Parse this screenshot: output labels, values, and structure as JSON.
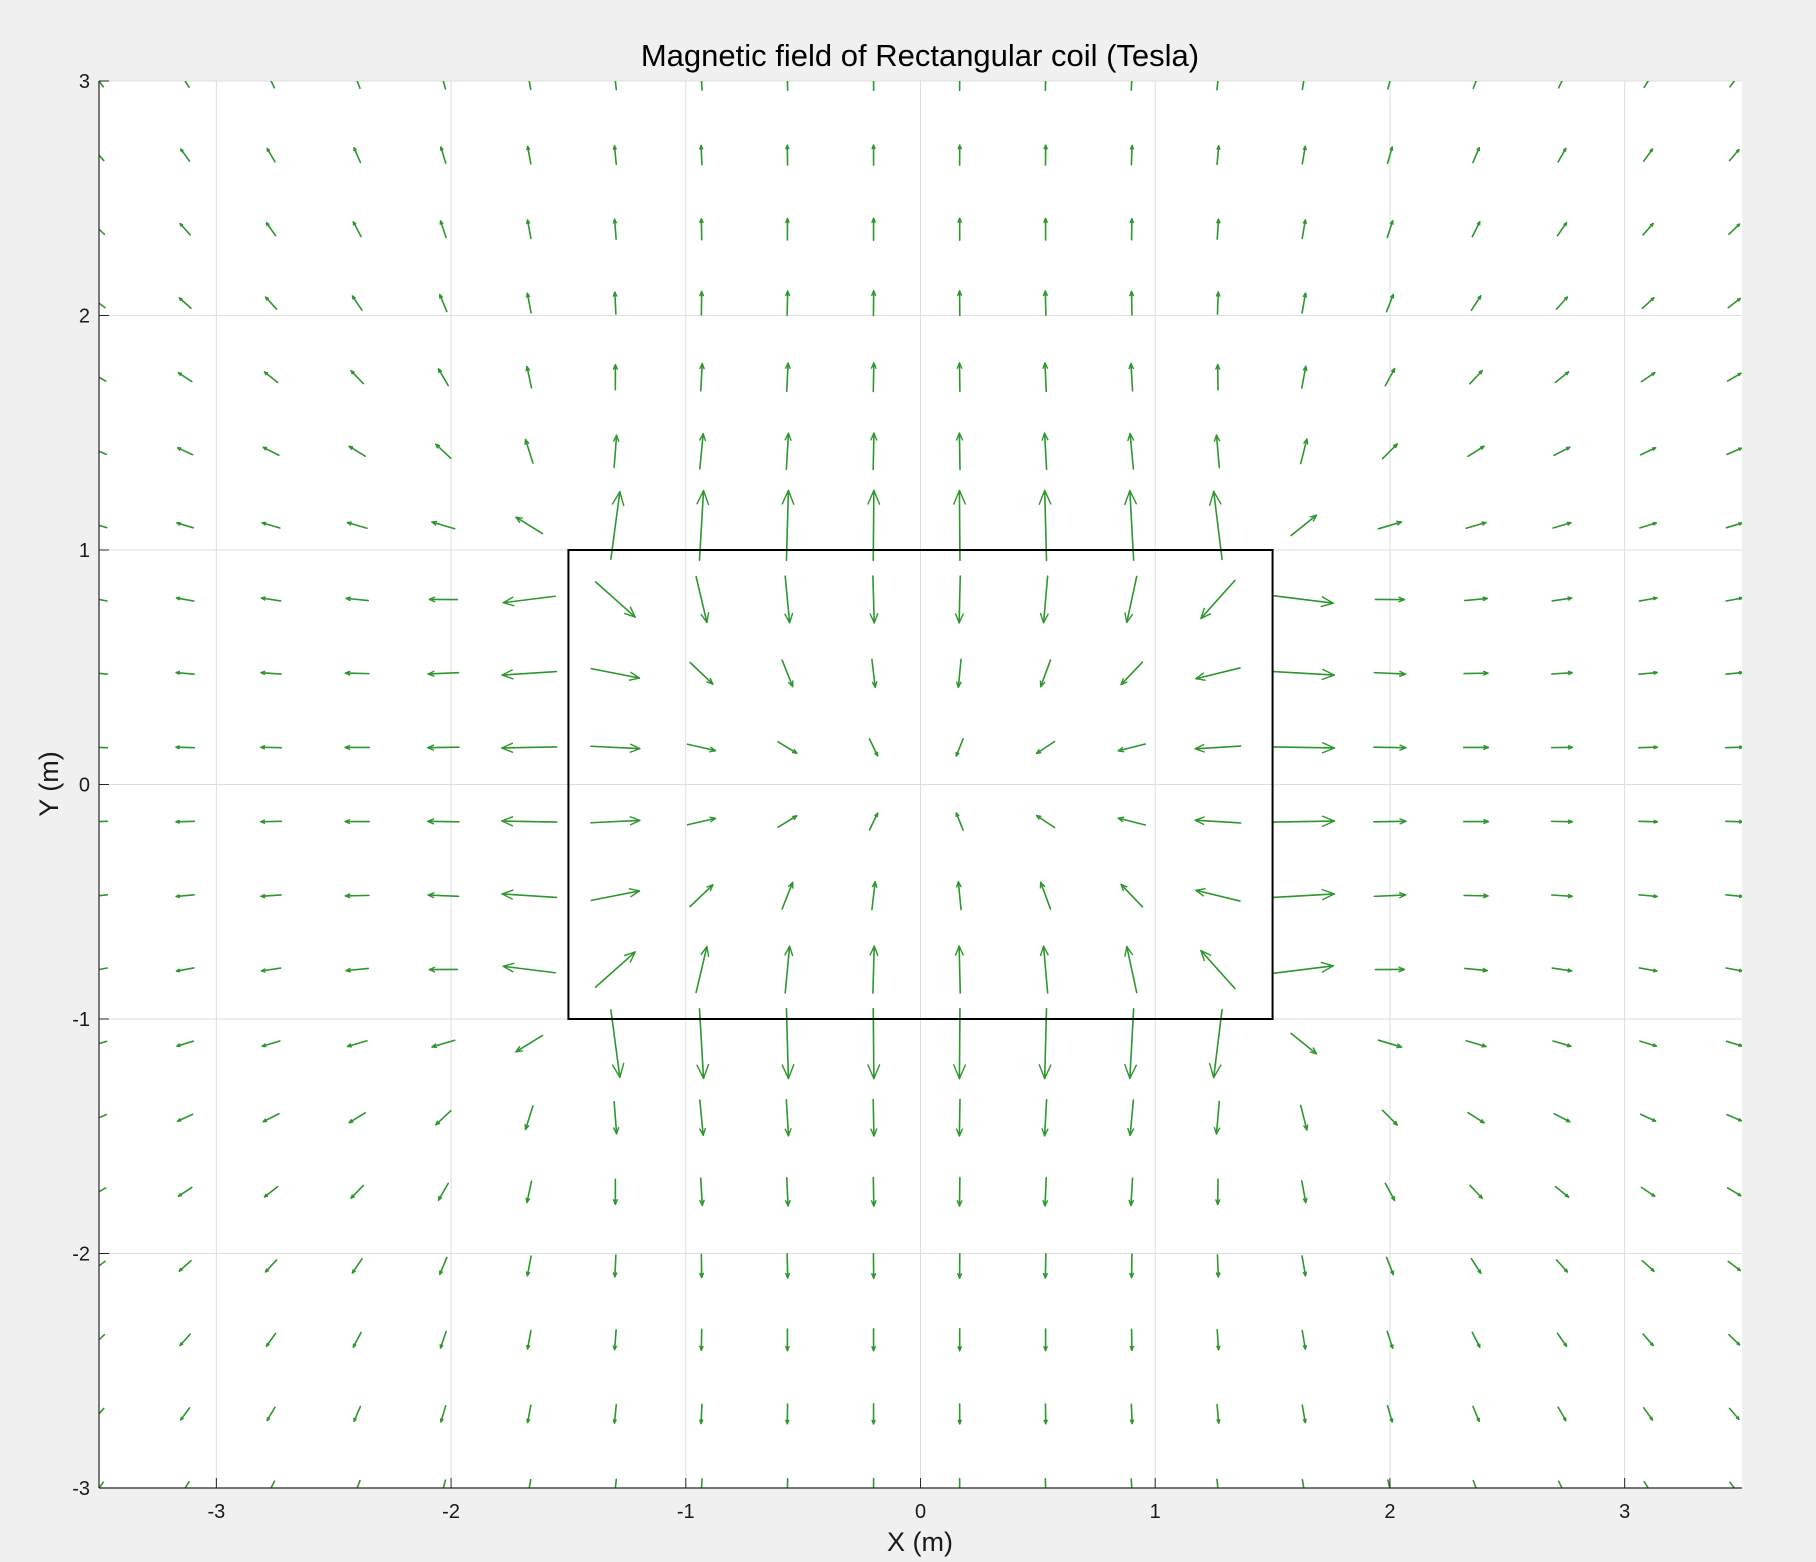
{
  "chart_data": {
    "type": "quiver",
    "title": "Magnetic field of Rectangular coil (Tesla)",
    "xlabel": "X (m)",
    "ylabel": "Y (m)",
    "xlim": [
      -3.5,
      3.5
    ],
    "ylim": [
      -3,
      3
    ],
    "xticks": [
      -3,
      -2,
      -1,
      0,
      1,
      2,
      3
    ],
    "yticks": [
      -3,
      -2,
      -1,
      0,
      1,
      2,
      3
    ],
    "xtick_labels": [
      "-3",
      "-2",
      "-1",
      "0",
      "1",
      "2",
      "3"
    ],
    "ytick_labels": [
      "-3",
      "-2",
      "-1",
      "0",
      "1",
      "2",
      "3"
    ],
    "grid": true,
    "arrow_color": "#2e962e",
    "coil": {
      "x": [
        -1.5,
        1.5
      ],
      "y": [
        -1,
        1
      ],
      "color": "#000000"
    },
    "field_grid": {
      "x": [
        -3.5,
        -3.133,
        -2.767,
        -2.4,
        -2.033,
        -1.667,
        -1.3,
        -0.933,
        -0.567,
        -0.2,
        0.167,
        0.533,
        0.9,
        1.267,
        1.633,
        2.0,
        2.367,
        2.733,
        3.1,
        3.467
      ],
      "y": [
        3.0,
        2.684,
        2.368,
        2.053,
        1.737,
        1.421,
        1.105,
        0.789,
        0.474,
        0.158,
        -0.158,
        -0.474,
        -0.789,
        -1.105,
        -1.421,
        -1.737,
        -2.053,
        -2.368,
        -2.684,
        -3.0
      ]
    }
  }
}
